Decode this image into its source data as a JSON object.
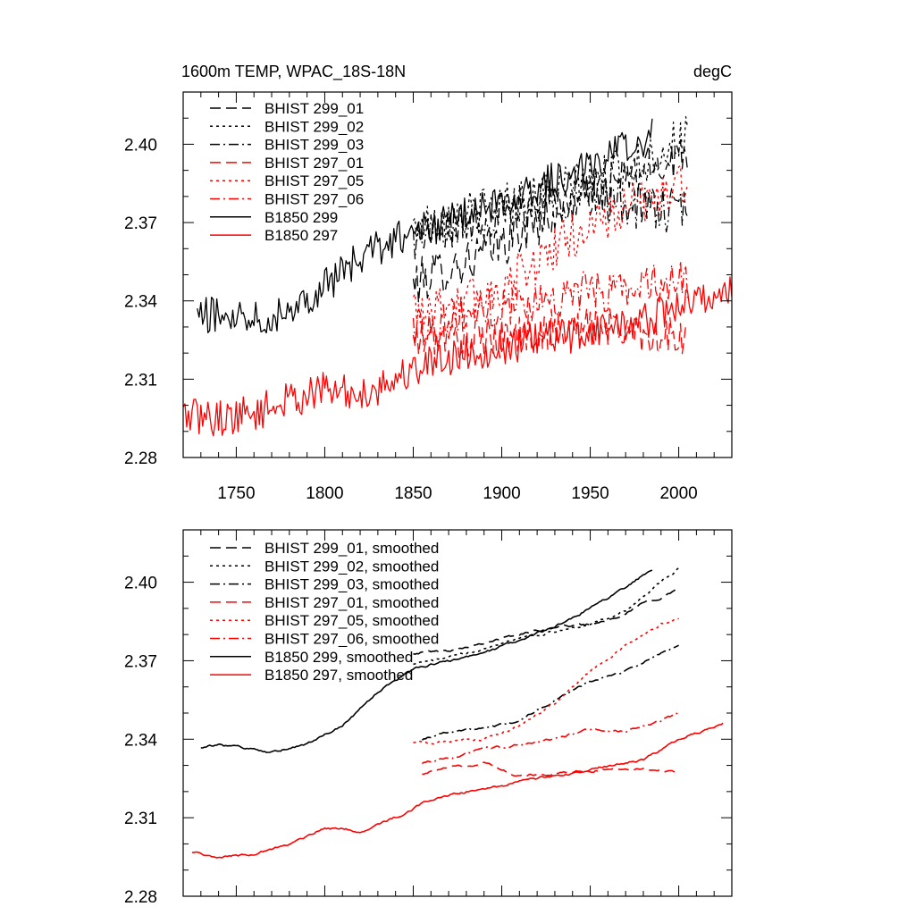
{
  "figure": {
    "background": "#ffffff"
  },
  "chart_data": [
    {
      "type": "line",
      "panel": "top",
      "title_left": "1600m TEMP, WPAC_18S-18N",
      "title_right": "degC",
      "xlabel": "",
      "ylabel": "",
      "xlim": [
        1720,
        2030
      ],
      "ylim": [
        2.28,
        2.42
      ],
      "yticks": [
        2.28,
        2.31,
        2.34,
        2.37,
        2.4
      ],
      "ytick_labels": [
        "2.28",
        "2.31",
        "2.34",
        "2.37",
        "2.40"
      ],
      "xticks": [
        1750,
        1800,
        1850,
        1900,
        1950,
        2000
      ],
      "xtick_labels": [
        "1750",
        "1800",
        "1850",
        "1900",
        "1950",
        "2000"
      ],
      "grid": false,
      "legend_position": "top-left",
      "series": [
        {
          "name": "BHIST 299_01",
          "color": "#000000",
          "dash": "dash",
          "noise": 0.009,
          "x": [
            1850,
            1860,
            1880,
            1900,
            1920,
            1940,
            1960,
            1980,
            2000,
            2005
          ],
          "y": [
            2.346,
            2.35,
            2.355,
            2.362,
            2.37,
            2.378,
            2.384,
            2.39,
            2.396,
            2.398
          ]
        },
        {
          "name": "BHIST 299_02",
          "color": "#000000",
          "dash": "dot",
          "noise": 0.009,
          "x": [
            1850,
            1860,
            1880,
            1900,
            1920,
            1940,
            1960,
            1980,
            2000,
            2005
          ],
          "y": [
            2.368,
            2.37,
            2.373,
            2.377,
            2.38,
            2.384,
            2.388,
            2.393,
            2.402,
            2.404
          ]
        },
        {
          "name": "BHIST 299_03",
          "color": "#000000",
          "dash": "dashdot",
          "noise": 0.009,
          "x": [
            1850,
            1860,
            1880,
            1900,
            1920,
            1940,
            1960,
            1980,
            2000,
            2005
          ],
          "y": [
            2.364,
            2.366,
            2.37,
            2.374,
            2.377,
            2.38,
            2.379,
            2.376,
            2.374,
            2.377
          ]
        },
        {
          "name": "BHIST 297_01",
          "color": "#ff0000",
          "dash": "dash",
          "noise": 0.008,
          "x": [
            1850,
            1860,
            1880,
            1900,
            1920,
            1940,
            1960,
            1980,
            2000,
            2005
          ],
          "y": [
            2.324,
            2.327,
            2.325,
            2.326,
            2.328,
            2.33,
            2.33,
            2.328,
            2.325,
            2.326
          ]
        },
        {
          "name": "BHIST 297_05",
          "color": "#ff0000",
          "dash": "dot",
          "noise": 0.009,
          "x": [
            1850,
            1860,
            1880,
            1900,
            1920,
            1940,
            1960,
            1980,
            2000,
            2005
          ],
          "y": [
            2.338,
            2.338,
            2.34,
            2.345,
            2.355,
            2.365,
            2.372,
            2.378,
            2.384,
            2.386
          ]
        },
        {
          "name": "BHIST 297_06",
          "color": "#ff0000",
          "dash": "dashdot",
          "noise": 0.008,
          "x": [
            1850,
            1860,
            1880,
            1900,
            1920,
            1940,
            1960,
            1980,
            2000,
            2005
          ],
          "y": [
            2.33,
            2.331,
            2.335,
            2.338,
            2.34,
            2.343,
            2.344,
            2.346,
            2.348,
            2.349
          ]
        },
        {
          "name": "B1850 299",
          "color": "#000000",
          "dash": "solid",
          "noise": 0.007,
          "x": [
            1728,
            1740,
            1760,
            1770,
            1780,
            1800,
            1820,
            1840,
            1860,
            1880,
            1900,
            1920,
            1940,
            1960,
            1980,
            1985
          ],
          "y": [
            2.334,
            2.335,
            2.335,
            2.334,
            2.337,
            2.346,
            2.356,
            2.364,
            2.368,
            2.373,
            2.378,
            2.384,
            2.389,
            2.395,
            2.402,
            2.405
          ]
        },
        {
          "name": "B1850 297",
          "color": "#ff0000",
          "dash": "solid",
          "noise": 0.007,
          "x": [
            1720,
            1740,
            1760,
            1780,
            1800,
            1820,
            1840,
            1860,
            1880,
            1900,
            1920,
            1940,
            1960,
            1980,
            2000,
            2020,
            2030
          ],
          "y": [
            2.296,
            2.295,
            2.297,
            2.302,
            2.306,
            2.304,
            2.31,
            2.317,
            2.32,
            2.322,
            2.325,
            2.327,
            2.33,
            2.332,
            2.338,
            2.342,
            2.344
          ]
        }
      ]
    },
    {
      "type": "line",
      "panel": "bottom",
      "title_left": "",
      "title_right": "",
      "xlabel": "",
      "ylabel": "",
      "xlim": [
        1720,
        2030
      ],
      "ylim": [
        2.28,
        2.42
      ],
      "yticks": [
        2.28,
        2.31,
        2.34,
        2.37,
        2.4
      ],
      "ytick_labels": [
        "2.28",
        "2.31",
        "2.34",
        "2.37",
        "2.40"
      ],
      "xticks": [
        1750,
        1800,
        1850,
        1900,
        1950,
        2000
      ],
      "xtick_labels": [],
      "grid": false,
      "legend_position": "top-left",
      "series": [
        {
          "name": "BHIST 299_01, smoothed",
          "color": "#000000",
          "dash": "dash",
          "noise": 0.0012,
          "x": [
            1850,
            1870,
            1890,
            1910,
            1930,
            1950,
            1960,
            1970,
            1980,
            1990,
            2000
          ],
          "y": [
            2.373,
            2.374,
            2.377,
            2.38,
            2.383,
            2.384,
            2.386,
            2.388,
            2.392,
            2.394,
            2.398
          ]
        },
        {
          "name": "BHIST 299_02, smoothed",
          "color": "#000000",
          "dash": "dot",
          "noise": 0.0012,
          "x": [
            1850,
            1870,
            1890,
            1910,
            1930,
            1950,
            1970,
            1990,
            2000
          ],
          "y": [
            2.369,
            2.371,
            2.375,
            2.379,
            2.381,
            2.384,
            2.389,
            2.4,
            2.405
          ]
        },
        {
          "name": "BHIST 299_03, smoothed",
          "color": "#000000",
          "dash": "dashdot",
          "noise": 0.0012,
          "x": [
            1855,
            1870,
            1890,
            1910,
            1930,
            1950,
            1970,
            1985,
            2000
          ],
          "y": [
            2.34,
            2.343,
            2.344,
            2.347,
            2.355,
            2.362,
            2.366,
            2.371,
            2.376
          ]
        },
        {
          "name": "BHIST 297_01, smoothed",
          "color": "#ff0000",
          "dash": "dash",
          "noise": 0.0012,
          "x": [
            1855,
            1870,
            1890,
            1910,
            1930,
            1950,
            1970,
            1990,
            2000
          ],
          "y": [
            2.327,
            2.329,
            2.331,
            2.326,
            2.327,
            2.328,
            2.329,
            2.328,
            2.327
          ]
        },
        {
          "name": "BHIST 297_05, smoothed",
          "color": "#ff0000",
          "dash": "dot",
          "noise": 0.0012,
          "x": [
            1850,
            1870,
            1890,
            1910,
            1930,
            1950,
            1970,
            1990,
            2000
          ],
          "y": [
            2.339,
            2.339,
            2.34,
            2.345,
            2.354,
            2.366,
            2.376,
            2.384,
            2.386
          ]
        },
        {
          "name": "BHIST 297_06, smoothed",
          "color": "#ff0000",
          "dash": "dashdot",
          "noise": 0.0012,
          "x": [
            1855,
            1870,
            1890,
            1910,
            1930,
            1950,
            1970,
            1990,
            2000
          ],
          "y": [
            2.331,
            2.333,
            2.336,
            2.338,
            2.34,
            2.344,
            2.343,
            2.347,
            2.35
          ]
        },
        {
          "name": "B1850 299, smoothed",
          "color": "#000000",
          "dash": "solid",
          "noise": 0.0012,
          "x": [
            1730,
            1740,
            1760,
            1770,
            1790,
            1810,
            1830,
            1850,
            1870,
            1890,
            1910,
            1930,
            1950,
            1970,
            1985
          ],
          "y": [
            2.337,
            2.338,
            2.336,
            2.335,
            2.338,
            2.345,
            2.358,
            2.367,
            2.37,
            2.373,
            2.378,
            2.383,
            2.39,
            2.398,
            2.405
          ]
        },
        {
          "name": "B1850 297, smoothed",
          "color": "#ff0000",
          "dash": "solid",
          "noise": 0.0012,
          "x": [
            1725,
            1740,
            1760,
            1780,
            1800,
            1820,
            1840,
            1860,
            1880,
            1900,
            1920,
            1940,
            1960,
            1980,
            2000,
            2020,
            2025
          ],
          "y": [
            2.297,
            2.295,
            2.296,
            2.3,
            2.306,
            2.305,
            2.31,
            2.317,
            2.32,
            2.322,
            2.325,
            2.327,
            2.33,
            2.332,
            2.34,
            2.345,
            2.346
          ]
        }
      ]
    }
  ]
}
